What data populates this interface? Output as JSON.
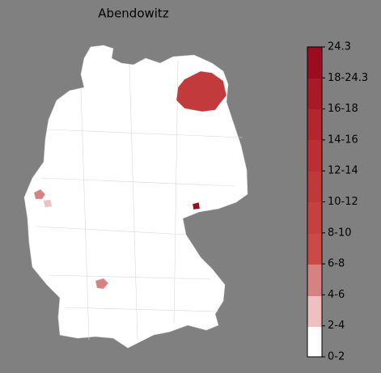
{
  "title": "Abendowitz",
  "colorbar": {
    "labels": [
      "24.3",
      "18-24.3",
      "16-18",
      "14-16",
      "12-14",
      "10-12",
      "8-10",
      "6-8",
      "4-6",
      "2-4",
      "0-2"
    ]
  }
}
